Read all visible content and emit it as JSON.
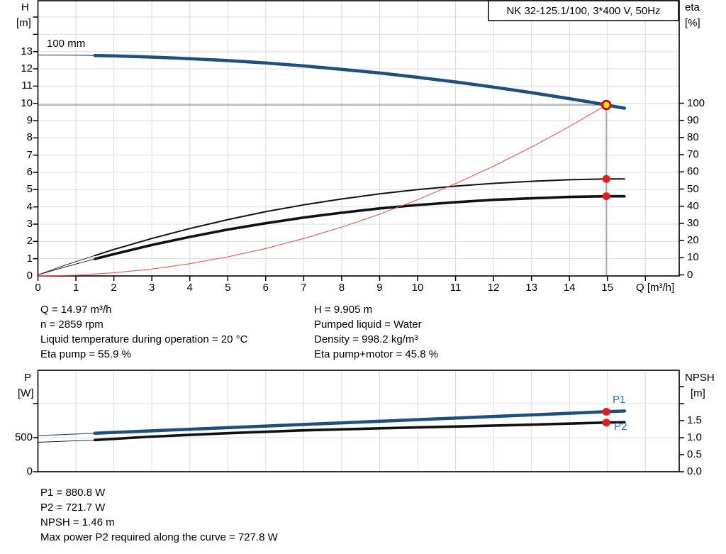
{
  "colors": {
    "curve_blue": "#1d5080",
    "series_label_blue": "#2e74b5",
    "black_curve": "#111111",
    "system_red": "#f2544d",
    "dot_red": "#e81b1b",
    "duty_ring_red": "#e00000",
    "duty_fill_yellow": "#ffe600",
    "grid": "#dcdcdc",
    "axis": "#000000",
    "crosshair": "#8a8a8a"
  },
  "chart_data": [
    {
      "id": "qh-chart",
      "type": "line",
      "title": "NK 32-125.1/100, 3*400 V, 50Hz",
      "x_axis": {
        "label": "Q [m³/h]",
        "min": 0,
        "max": 16.9,
        "grid_step": 1,
        "tick_values": [
          0,
          1,
          2,
          3,
          4,
          5,
          6,
          7,
          8,
          9,
          10,
          11,
          12,
          13,
          14,
          15
        ],
        "tick_labels": [
          "0",
          "1",
          "2",
          "3",
          "4",
          "5",
          "6",
          "7",
          "8",
          "9",
          "10",
          "11",
          "12",
          "13",
          "14",
          "15"
        ]
      },
      "y_left": {
        "name": "H",
        "unit": "[m]",
        "min": 0,
        "max": 16,
        "grid_step": 1,
        "tick_values": [
          0,
          1,
          2,
          3,
          4,
          5,
          6,
          7,
          8,
          9,
          10,
          11,
          12,
          13
        ],
        "tick_labels": [
          "0",
          "1",
          "2",
          "3",
          "4",
          "5",
          "6",
          "7",
          "8",
          "9",
          "10",
          "11",
          "12",
          "13"
        ]
      },
      "y_right": {
        "name": "eta",
        "unit": "[%]",
        "min": 0,
        "max": 100,
        "grid_step": 10,
        "tick_values": [
          0,
          10,
          20,
          30,
          40,
          50,
          60,
          70,
          80,
          90,
          100
        ],
        "tick_labels": [
          "0",
          "10",
          "20",
          "30",
          "40",
          "50",
          "60",
          "70",
          "80",
          "90",
          "100"
        ]
      },
      "series": [
        {
          "name": "head-curve",
          "annotation": "100 mm",
          "axis": "left",
          "color": "#1d5080",
          "width_thick": 4.5,
          "width_thin": 1.1,
          "thin_until": 1.5,
          "points": [
            [
              0,
              12.8
            ],
            [
              1,
              12.79
            ],
            [
              1.5,
              12.77
            ],
            [
              2,
              12.75
            ],
            [
              3,
              12.68
            ],
            [
              4,
              12.59
            ],
            [
              5,
              12.48
            ],
            [
              6,
              12.34
            ],
            [
              7,
              12.17
            ],
            [
              8,
              11.97
            ],
            [
              9,
              11.76
            ],
            [
              10,
              11.51
            ],
            [
              11,
              11.24
            ],
            [
              12,
              10.94
            ],
            [
              13,
              10.62
            ],
            [
              14,
              10.27
            ],
            [
              14.5,
              10.09
            ],
            [
              14.97,
              9.905
            ],
            [
              15.45,
              9.72
            ]
          ]
        },
        {
          "name": "eta-pump-curve",
          "axis": "right",
          "color": "#111111",
          "width_thick": 2,
          "width_thin": 0.9,
          "thin_until": 1.5,
          "points": [
            [
              0,
              0
            ],
            [
              0.75,
              5.9
            ],
            [
              1.5,
              11.3
            ],
            [
              2,
              14.8
            ],
            [
              3,
              21.2
            ],
            [
              4,
              27.0
            ],
            [
              5,
              32.2
            ],
            [
              6,
              36.8
            ],
            [
              7,
              40.8
            ],
            [
              8,
              44.2
            ],
            [
              9,
              47.2
            ],
            [
              10,
              49.7
            ],
            [
              11,
              51.7
            ],
            [
              12,
              53.3
            ],
            [
              13,
              54.5
            ],
            [
              14,
              55.4
            ],
            [
              14.97,
              55.9
            ],
            [
              15.45,
              55.9
            ]
          ]
        },
        {
          "name": "eta-pump-motor-curve",
          "axis": "right",
          "color": "#111111",
          "width_thick": 3.6,
          "width_thin": 0.9,
          "thin_until": 1.5,
          "points": [
            [
              0,
              0
            ],
            [
              0.75,
              4.8
            ],
            [
              1.5,
              9.3
            ],
            [
              2,
              12.1
            ],
            [
              3,
              17.4
            ],
            [
              4,
              22.1
            ],
            [
              5,
              26.4
            ],
            [
              6,
              30.1
            ],
            [
              7,
              33.4
            ],
            [
              8,
              36.2
            ],
            [
              9,
              38.7
            ],
            [
              10,
              40.7
            ],
            [
              11,
              42.3
            ],
            [
              12,
              43.7
            ],
            [
              13,
              44.6
            ],
            [
              14,
              45.4
            ],
            [
              14.97,
              45.8
            ],
            [
              15.45,
              45.8
            ]
          ]
        },
        {
          "name": "system-curve",
          "axis": "left",
          "color": "#f2544d",
          "width_thick": 1.1,
          "width_thin": 1.1,
          "thin_until": 0,
          "points": [
            [
              0,
              0
            ],
            [
              1,
              0.04
            ],
            [
              2,
              0.18
            ],
            [
              3,
              0.4
            ],
            [
              4,
              0.71
            ],
            [
              5,
              1.11
            ],
            [
              6,
              1.59
            ],
            [
              7,
              2.17
            ],
            [
              8,
              2.83
            ],
            [
              9,
              3.58
            ],
            [
              10,
              4.42
            ],
            [
              11,
              5.35
            ],
            [
              12,
              6.36
            ],
            [
              13,
              7.47
            ],
            [
              14,
              8.66
            ],
            [
              14.97,
              9.905
            ]
          ]
        }
      ],
      "crosshair": {
        "q": 14.97,
        "h": 9.905
      },
      "markers": [
        {
          "kind": "duty-point",
          "q": 14.97,
          "value": 9.905,
          "axis": "left"
        },
        {
          "kind": "dot",
          "q": 14.97,
          "value": 55.9,
          "axis": "right"
        },
        {
          "kind": "dot",
          "q": 14.97,
          "value": 45.8,
          "axis": "right"
        }
      ]
    },
    {
      "id": "power-chart",
      "type": "line",
      "x_axis": {
        "min": 0,
        "max": 16.9,
        "grid_step": 1,
        "tick_values": [],
        "tick_labels": []
      },
      "y_left": {
        "name": "P",
        "unit": "[W]",
        "min": 0,
        "max": 1490,
        "grid_step": 500,
        "tick_values": [
          0,
          500
        ],
        "tick_labels": [
          "0",
          "500"
        ],
        "extra_tick_values": [
          1000
        ]
      },
      "y_right": {
        "name": "NPSH",
        "unit": "[m]",
        "min": 0,
        "max": 2.98,
        "grid_step": 0.5,
        "tick_values": [
          0,
          0.5,
          1,
          1.5
        ],
        "tick_labels": [
          "0.0",
          "0.5",
          "1.0",
          "1.5"
        ],
        "extra_tick_values": [
          2,
          2.5
        ]
      },
      "series": [
        {
          "name": "p1-curve",
          "label": "P1",
          "axis": "left",
          "color": "#1d5080",
          "width_thick": 4.5,
          "width_thin": 1.1,
          "thin_until": 1.5,
          "points": [
            [
              0,
              530
            ],
            [
              1.5,
              565
            ],
            [
              3,
              600
            ],
            [
              5,
              647
            ],
            [
              7,
              694
            ],
            [
              9,
              741
            ],
            [
              11,
              787
            ],
            [
              13,
              834
            ],
            [
              14.97,
              880.8
            ],
            [
              15.45,
              892
            ]
          ]
        },
        {
          "name": "p2-curve",
          "label": "P2",
          "axis": "left",
          "color": "#111111",
          "width_thick": 3.6,
          "width_thin": 0.9,
          "thin_until": 1.5,
          "points": [
            [
              0,
              432
            ],
            [
              1.5,
              466
            ],
            [
              3,
              516
            ],
            [
              5,
              566
            ],
            [
              7,
              607
            ],
            [
              9,
              638
            ],
            [
              11,
              664
            ],
            [
              13,
              691
            ],
            [
              14.97,
              721.7
            ],
            [
              15.45,
              726
            ]
          ]
        }
      ],
      "markers": [
        {
          "kind": "dot",
          "q": 14.97,
          "value": 880.8,
          "axis": "left"
        },
        {
          "kind": "dot",
          "q": 14.97,
          "value": 721.7,
          "axis": "left"
        }
      ]
    }
  ],
  "operating_point": {
    "left_lines": [
      "Q = 14.97 m³/h",
      "n = 2859 rpm",
      "Liquid temperature during operation = 20 °C",
      "Eta pump = 55.9 %"
    ],
    "right_lines": [
      "H = 9.905 m",
      "Pumped liquid = Water",
      "Density = 998.2 kg/m³",
      "Eta pump+motor = 45.8 %"
    ]
  },
  "footer_lines": [
    "P1 = 880.8 W",
    "P2 = 721.7 W",
    "NPSH = 1.46 m",
    "Max power P2 required along the curve = 727.8 W"
  ]
}
